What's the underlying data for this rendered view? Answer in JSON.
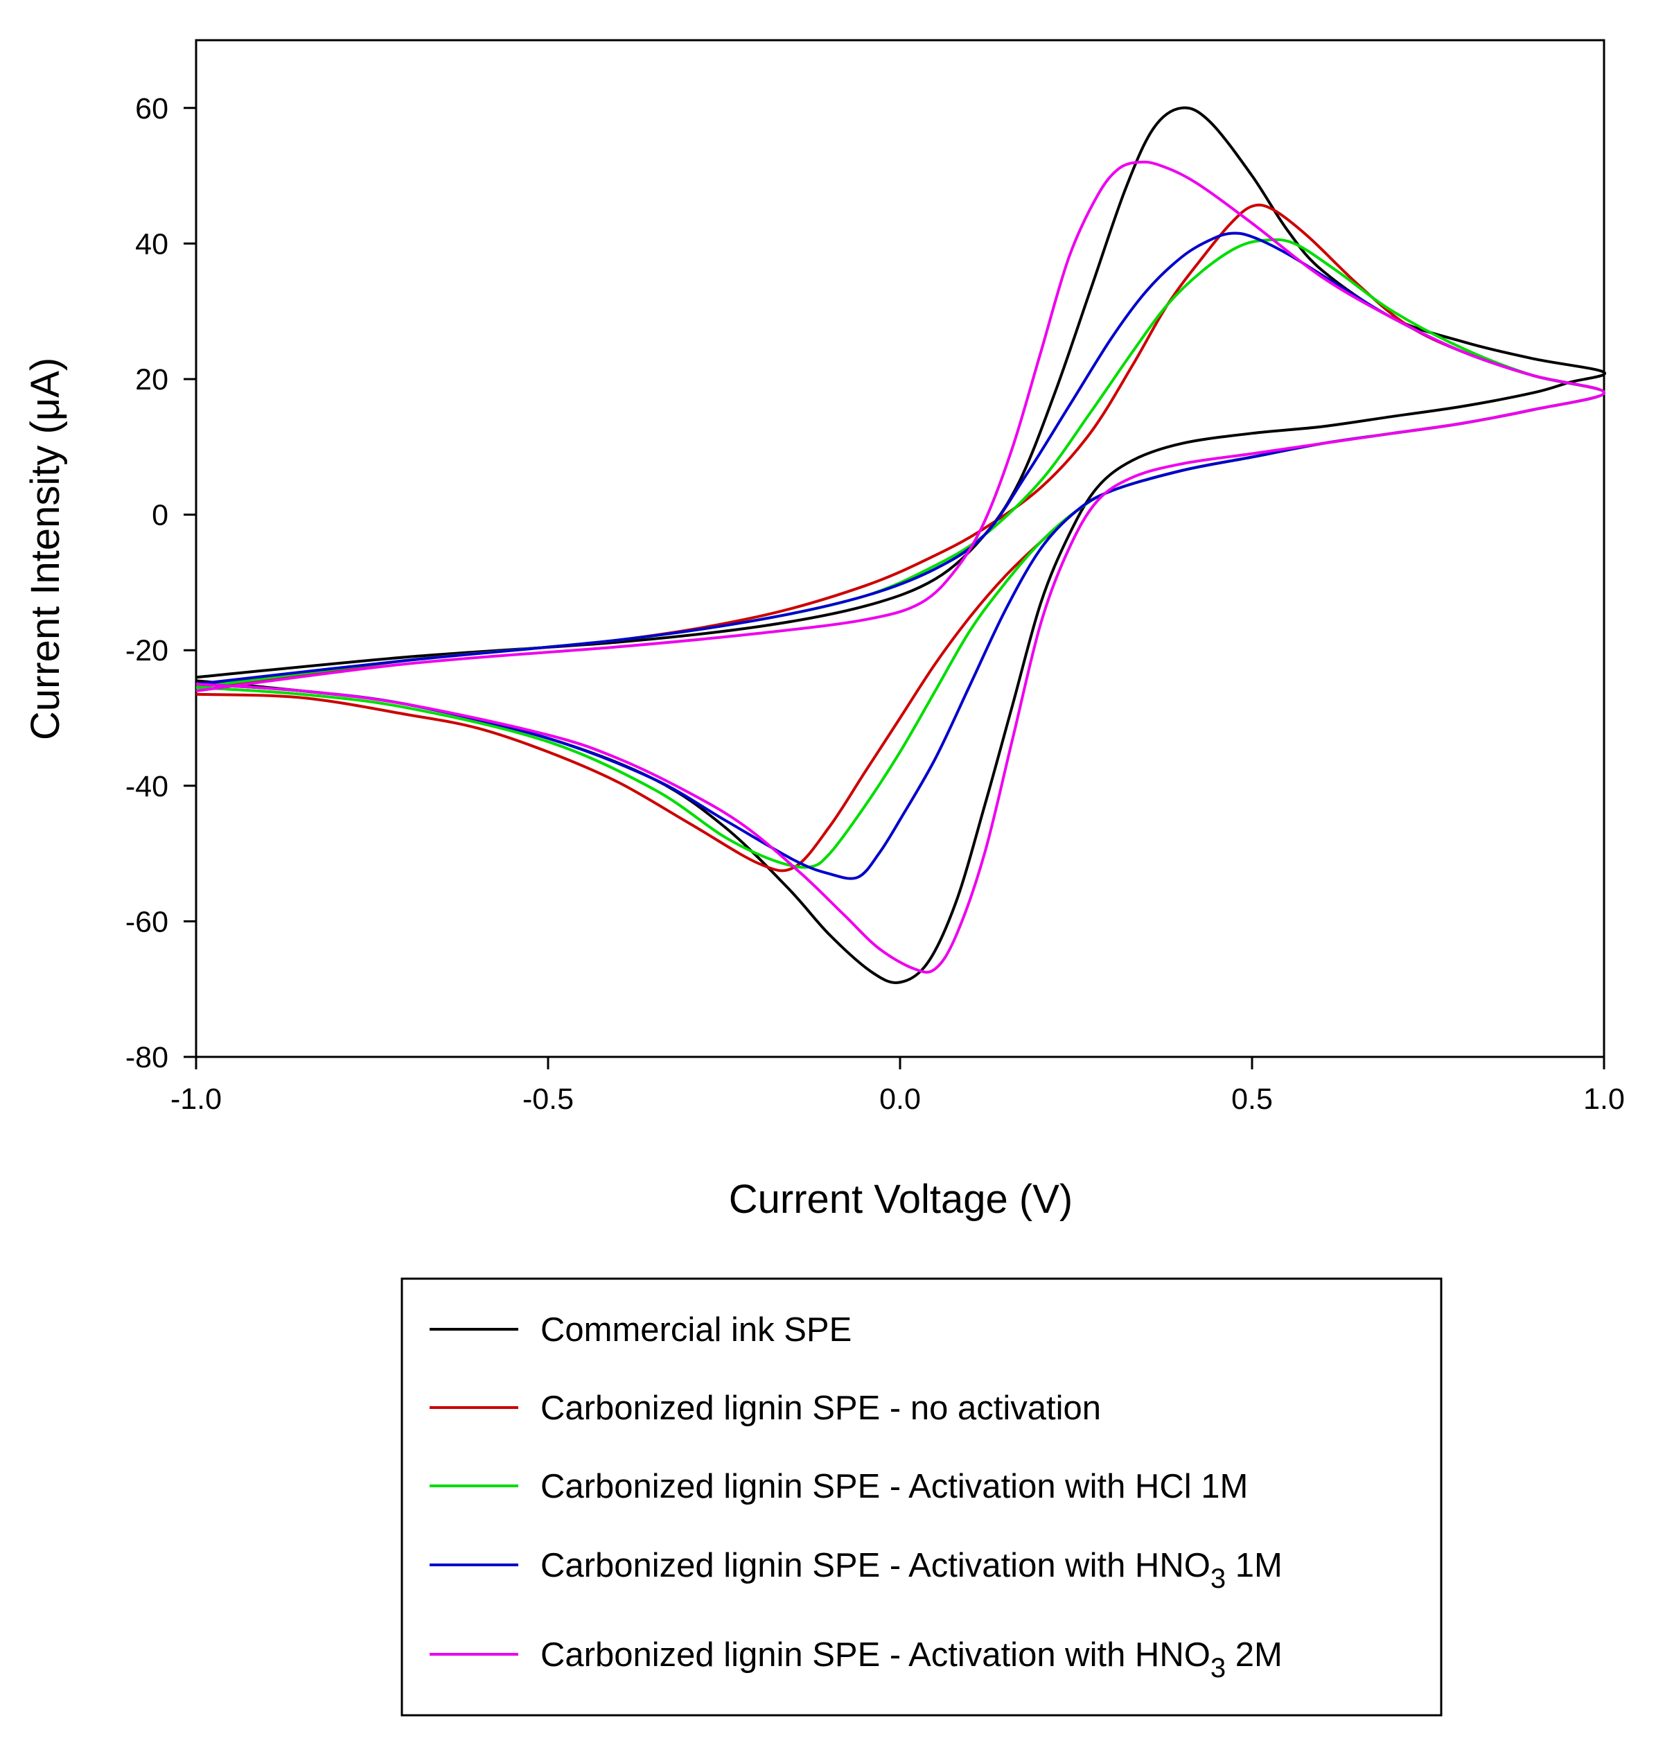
{
  "chart_data": {
    "type": "line",
    "title": "",
    "xlabel": "Current Voltage (V)",
    "ylabel": "Current Intensity (μA)",
    "xlim": [
      -1.0,
      1.0
    ],
    "ylim": [
      -80,
      70
    ],
    "xticks": [
      -1.0,
      -0.5,
      0.0,
      0.5,
      1.0
    ],
    "xtick_labels": [
      "-1.0",
      "-0.5",
      "0.0",
      "0.5",
      "1.0"
    ],
    "yticks": [
      -80,
      -60,
      -40,
      -20,
      0,
      20,
      40,
      60
    ],
    "ytick_labels": [
      "-80",
      "-60",
      "-40",
      "-20",
      "0",
      "20",
      "40",
      "60"
    ],
    "grid": false,
    "legend_position": "below",
    "series": [
      {
        "name": "Commercial ink SPE",
        "legend_main": "Commercial ink SPE",
        "legend_sub": "",
        "legend_tail": "",
        "color": "#000000",
        "points": [
          [
            -1.0,
            -24
          ],
          [
            -0.7,
            -21
          ],
          [
            -0.4,
            -18.8
          ],
          [
            -0.2,
            -16.5
          ],
          [
            -0.05,
            -13.5
          ],
          [
            0.05,
            -9.5
          ],
          [
            0.12,
            -3
          ],
          [
            0.17,
            5
          ],
          [
            0.22,
            18
          ],
          [
            0.27,
            33
          ],
          [
            0.32,
            48
          ],
          [
            0.36,
            57
          ],
          [
            0.4,
            60
          ],
          [
            0.44,
            58
          ],
          [
            0.5,
            50
          ],
          [
            0.55,
            42
          ],
          [
            0.6,
            36
          ],
          [
            0.7,
            29
          ],
          [
            0.8,
            25.5
          ],
          [
            0.9,
            23
          ],
          [
            1.0,
            21
          ],
          [
            0.95,
            19.5
          ],
          [
            0.9,
            18
          ],
          [
            0.8,
            16
          ],
          [
            0.7,
            14.5
          ],
          [
            0.6,
            13
          ],
          [
            0.5,
            12
          ],
          [
            0.4,
            10.5
          ],
          [
            0.33,
            8
          ],
          [
            0.28,
            4
          ],
          [
            0.24,
            -3
          ],
          [
            0.2,
            -13
          ],
          [
            0.16,
            -28
          ],
          [
            0.12,
            -43
          ],
          [
            0.08,
            -57
          ],
          [
            0.04,
            -66
          ],
          [
            0.0,
            -69
          ],
          [
            -0.04,
            -67.5
          ],
          [
            -0.1,
            -62
          ],
          [
            -0.16,
            -55
          ],
          [
            -0.25,
            -46
          ],
          [
            -0.35,
            -39
          ],
          [
            -0.5,
            -33
          ],
          [
            -0.7,
            -28
          ],
          [
            -0.85,
            -26
          ],
          [
            -1.0,
            -24.5
          ]
        ]
      },
      {
        "name": "Carbonized lignin SPE - no activation",
        "legend_main": "Carbonized lignin SPE - no activation",
        "legend_sub": "",
        "legend_tail": "",
        "color": "#cc0000",
        "points": [
          [
            -1.0,
            -26
          ],
          [
            -0.7,
            -21.5
          ],
          [
            -0.4,
            -18.5
          ],
          [
            -0.2,
            -15
          ],
          [
            -0.05,
            -10.5
          ],
          [
            0.05,
            -6
          ],
          [
            0.12,
            -2
          ],
          [
            0.2,
            4
          ],
          [
            0.27,
            12
          ],
          [
            0.33,
            22
          ],
          [
            0.38,
            31
          ],
          [
            0.43,
            38
          ],
          [
            0.47,
            43
          ],
          [
            0.5,
            45.5
          ],
          [
            0.53,
            45
          ],
          [
            0.58,
            41
          ],
          [
            0.65,
            34
          ],
          [
            0.72,
            28
          ],
          [
            0.8,
            24
          ],
          [
            0.9,
            20.5
          ],
          [
            1.0,
            18
          ],
          [
            0.9,
            15.5
          ],
          [
            0.8,
            13.5
          ],
          [
            0.7,
            12
          ],
          [
            0.6,
            10.5
          ],
          [
            0.5,
            8.5
          ],
          [
            0.4,
            6.5
          ],
          [
            0.3,
            3.5
          ],
          [
            0.25,
            0.5
          ],
          [
            0.2,
            -4
          ],
          [
            0.15,
            -9
          ],
          [
            0.1,
            -15
          ],
          [
            0.05,
            -22
          ],
          [
            0.0,
            -30
          ],
          [
            -0.05,
            -38
          ],
          [
            -0.1,
            -46
          ],
          [
            -0.15,
            -52
          ],
          [
            -0.2,
            -51.5
          ],
          [
            -0.3,
            -45.5
          ],
          [
            -0.4,
            -39.5
          ],
          [
            -0.5,
            -35
          ],
          [
            -0.6,
            -31.5
          ],
          [
            -0.7,
            -29.5
          ],
          [
            -0.85,
            -27
          ],
          [
            -1.0,
            -26.5
          ]
        ]
      },
      {
        "name": "Carbonized lignin SPE - Activation with HCl 1M",
        "legend_main": "Carbonized lignin SPE - Activation with HCl 1M",
        "legend_sub": "",
        "legend_tail": "",
        "color": "#00dd00",
        "points": [
          [
            -1.0,
            -25.5
          ],
          [
            -0.7,
            -21.5
          ],
          [
            -0.4,
            -18.5
          ],
          [
            -0.2,
            -15.5
          ],
          [
            -0.05,
            -12
          ],
          [
            0.05,
            -7.5
          ],
          [
            0.12,
            -3
          ],
          [
            0.2,
            5
          ],
          [
            0.27,
            15
          ],
          [
            0.33,
            24
          ],
          [
            0.38,
            31
          ],
          [
            0.43,
            36
          ],
          [
            0.48,
            39.5
          ],
          [
            0.52,
            40.5
          ],
          [
            0.56,
            40
          ],
          [
            0.62,
            36
          ],
          [
            0.7,
            30
          ],
          [
            0.8,
            24.5
          ],
          [
            0.9,
            20.5
          ],
          [
            1.0,
            18
          ],
          [
            0.9,
            15.5
          ],
          [
            0.8,
            13.5
          ],
          [
            0.7,
            12
          ],
          [
            0.6,
            10.5
          ],
          [
            0.5,
            8.5
          ],
          [
            0.4,
            6.5
          ],
          [
            0.3,
            3.5
          ],
          [
            0.25,
            0.5
          ],
          [
            0.2,
            -4
          ],
          [
            0.15,
            -10
          ],
          [
            0.1,
            -17
          ],
          [
            0.05,
            -26
          ],
          [
            0.0,
            -35
          ],
          [
            -0.05,
            -43
          ],
          [
            -0.1,
            -50
          ],
          [
            -0.13,
            -52
          ],
          [
            -0.18,
            -51
          ],
          [
            -0.25,
            -47.5
          ],
          [
            -0.35,
            -40.5
          ],
          [
            -0.5,
            -33.5
          ],
          [
            -0.7,
            -28.5
          ],
          [
            -0.85,
            -26.5
          ],
          [
            -1.0,
            -25.5
          ]
        ]
      },
      {
        "name": "Carbonized lignin SPE - Activation with HNO3 1M",
        "legend_main": "Carbonized lignin SPE - Activation with HNO",
        "legend_sub": "3",
        "legend_tail": " 1M",
        "color": "#0000cc",
        "points": [
          [
            -1.0,
            -25
          ],
          [
            -0.7,
            -21.5
          ],
          [
            -0.4,
            -18.5
          ],
          [
            -0.2,
            -15.5
          ],
          [
            -0.05,
            -12
          ],
          [
            0.05,
            -8
          ],
          [
            0.12,
            -3
          ],
          [
            0.18,
            6
          ],
          [
            0.24,
            16
          ],
          [
            0.3,
            26
          ],
          [
            0.35,
            33
          ],
          [
            0.4,
            38
          ],
          [
            0.44,
            40.5
          ],
          [
            0.47,
            41.5
          ],
          [
            0.5,
            41
          ],
          [
            0.55,
            38.5
          ],
          [
            0.62,
            34
          ],
          [
            0.7,
            29
          ],
          [
            0.8,
            24
          ],
          [
            0.9,
            20.5
          ],
          [
            1.0,
            18
          ],
          [
            0.9,
            15.5
          ],
          [
            0.8,
            13.5
          ],
          [
            0.7,
            12
          ],
          [
            0.6,
            10.5
          ],
          [
            0.5,
            8.5
          ],
          [
            0.4,
            6.5
          ],
          [
            0.3,
            3.5
          ],
          [
            0.25,
            0.5
          ],
          [
            0.2,
            -5
          ],
          [
            0.15,
            -14
          ],
          [
            0.1,
            -25
          ],
          [
            0.05,
            -36
          ],
          [
            0.0,
            -45
          ],
          [
            -0.03,
            -50
          ],
          [
            -0.06,
            -53.5
          ],
          [
            -0.1,
            -53
          ],
          [
            -0.15,
            -51
          ],
          [
            -0.25,
            -45
          ],
          [
            -0.35,
            -39
          ],
          [
            -0.5,
            -33
          ],
          [
            -0.7,
            -28
          ],
          [
            -0.85,
            -26
          ],
          [
            -1.0,
            -25
          ]
        ]
      },
      {
        "name": "Carbonized lignin SPE - Activation with HNO3 2M",
        "legend_main": "Carbonized lignin SPE - Activation with HNO",
        "legend_sub": "3",
        "legend_tail": " 2M",
        "color": "#ee00ee",
        "points": [
          [
            -1.0,
            -26
          ],
          [
            -0.7,
            -22
          ],
          [
            -0.4,
            -19.5
          ],
          [
            -0.2,
            -17.5
          ],
          [
            -0.05,
            -15.5
          ],
          [
            0.03,
            -13
          ],
          [
            0.08,
            -8
          ],
          [
            0.12,
            -1
          ],
          [
            0.16,
            10
          ],
          [
            0.2,
            24
          ],
          [
            0.24,
            38
          ],
          [
            0.28,
            47
          ],
          [
            0.31,
            51
          ],
          [
            0.34,
            52
          ],
          [
            0.37,
            51.5
          ],
          [
            0.42,
            49
          ],
          [
            0.5,
            43
          ],
          [
            0.6,
            35
          ],
          [
            0.7,
            29
          ],
          [
            0.8,
            24
          ],
          [
            0.9,
            20.5
          ],
          [
            1.0,
            18
          ],
          [
            0.9,
            15.5
          ],
          [
            0.8,
            13.5
          ],
          [
            0.7,
            12
          ],
          [
            0.6,
            10.5
          ],
          [
            0.5,
            9
          ],
          [
            0.4,
            7.5
          ],
          [
            0.33,
            5.5
          ],
          [
            0.28,
            2
          ],
          [
            0.24,
            -5
          ],
          [
            0.2,
            -16
          ],
          [
            0.16,
            -33
          ],
          [
            0.12,
            -50
          ],
          [
            0.08,
            -62
          ],
          [
            0.05,
            -67
          ],
          [
            0.02,
            -67
          ],
          [
            -0.03,
            -64
          ],
          [
            -0.08,
            -59
          ],
          [
            -0.14,
            -53
          ],
          [
            -0.22,
            -46
          ],
          [
            -0.3,
            -41
          ],
          [
            -0.4,
            -36
          ],
          [
            -0.5,
            -32.5
          ],
          [
            -0.7,
            -28
          ],
          [
            -0.85,
            -26
          ],
          [
            -1.0,
            -25
          ]
        ]
      }
    ]
  }
}
